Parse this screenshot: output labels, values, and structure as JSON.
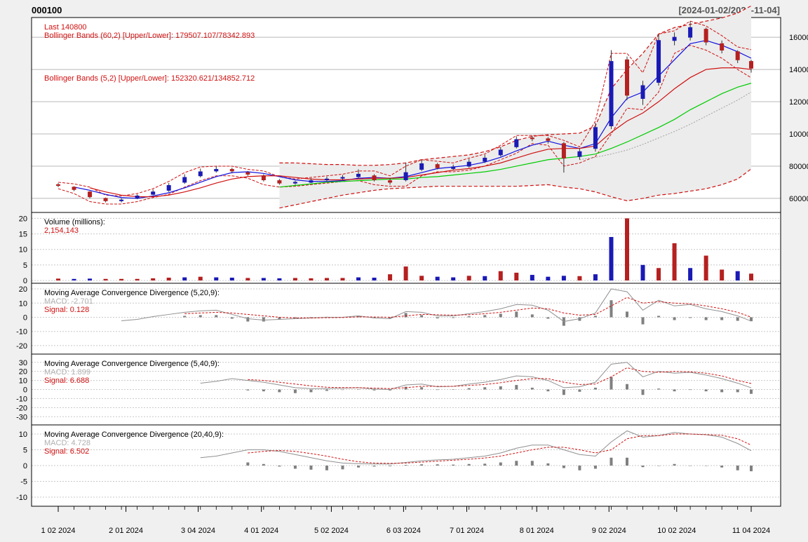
{
  "header": {
    "symbol": "000100",
    "date_range": "[2024-01-02/2024-11-04]"
  },
  "colors": {
    "up": "#1a1ab5",
    "down": "#b52020",
    "band60": "#d01010",
    "band5": "#d01010",
    "ma_blue": "#1010e0",
    "ma_red": "#d01010",
    "ma_green": "#00cc00",
    "ma_gray": "#a0a0a0",
    "macd_line": "#909090",
    "signal_line": "#d01010",
    "hist": "#808080"
  },
  "chart_data": [
    {
      "type": "candlestick",
      "name": "price",
      "annotations": [
        "Last 140800",
        "Bollinger Bands (60,2) [Upper/Lower]: 179507.107/78342.893",
        "Bollinger Bands (5,2) [Upper/Lower]: 152320.621/134852.712"
      ],
      "ylim": [
        53000,
        170500
      ],
      "yticks": [
        60000,
        80000,
        100000,
        120000,
        140000,
        160000
      ],
      "ytick_labels": [
        "60000",
        "80000",
        "100000",
        "120000",
        "140000",
        "160000"
      ],
      "grid": true,
      "x_dates": [
        "2024-01-02",
        "2024-01-09",
        "2024-01-16",
        "2024-01-23",
        "2024-01-30",
        "2024-02-06",
        "2024-02-13",
        "2024-02-20",
        "2024-02-27",
        "2024-03-05",
        "2024-03-12",
        "2024-03-19",
        "2024-03-26",
        "2024-04-02",
        "2024-04-09",
        "2024-04-16",
        "2024-04-23",
        "2024-04-30",
        "2024-05-07",
        "2024-05-14",
        "2024-05-21",
        "2024-05-28",
        "2024-06-04",
        "2024-06-11",
        "2024-06-18",
        "2024-06-25",
        "2024-07-02",
        "2024-07-09",
        "2024-07-16",
        "2024-07-23",
        "2024-07-30",
        "2024-08-06",
        "2024-08-13",
        "2024-08-20",
        "2024-08-27",
        "2024-09-03",
        "2024-09-10",
        "2024-09-17",
        "2024-09-24",
        "2024-10-01",
        "2024-10-08",
        "2024-10-15",
        "2024-10-22",
        "2024-10-29",
        "2024-11-04"
      ],
      "close": [
        68000,
        65500,
        61000,
        58500,
        59000,
        61500,
        64000,
        68000,
        73000,
        76500,
        78000,
        77000,
        75000,
        71500,
        69500,
        70000,
        71000,
        72000,
        73000,
        75000,
        71500,
        70000,
        76000,
        81500,
        79000,
        79500,
        82500,
        85000,
        90000,
        96500,
        97000,
        96000,
        85000,
        89000,
        104000,
        145000,
        124000,
        130000,
        158000,
        160000,
        166000,
        157000,
        152000,
        146000,
        140800
      ],
      "open": [
        68500,
        67000,
        64000,
        60000,
        58500,
        60000,
        62500,
        65000,
        70000,
        74000,
        77000,
        78000,
        76000,
        74000,
        71000,
        69500,
        70000,
        71500,
        72500,
        73500,
        74000,
        71000,
        71500,
        78000,
        81000,
        78500,
        80000,
        83000,
        87000,
        92000,
        97500,
        97000,
        94000,
        86000,
        91000,
        105000,
        146000,
        122000,
        132000,
        158000,
        160000,
        165000,
        156000,
        151000,
        145000
      ],
      "high": [
        69500,
        67500,
        64500,
        60500,
        60000,
        62500,
        65500,
        69500,
        75000,
        78500,
        80000,
        79000,
        77000,
        75000,
        72000,
        71000,
        72500,
        73500,
        74500,
        78000,
        75000,
        72500,
        82000,
        84000,
        82000,
        81000,
        84500,
        87000,
        92000,
        98500,
        99000,
        98000,
        95000,
        91000,
        107000,
        152000,
        148000,
        133000,
        162000,
        163000,
        170000,
        166000,
        158000,
        152000,
        146000
      ],
      "low": [
        67000,
        64500,
        60000,
        57500,
        57500,
        59500,
        62000,
        64000,
        69000,
        73000,
        76000,
        75500,
        74000,
        70500,
        68500,
        68500,
        69500,
        70500,
        71500,
        72500,
        70500,
        68500,
        70500,
        77000,
        78000,
        77500,
        79000,
        82000,
        86000,
        91000,
        95500,
        94000,
        76000,
        84000,
        89000,
        103000,
        121000,
        118000,
        130000,
        155000,
        158000,
        155000,
        150000,
        144000,
        138000
      ],
      "series": [
        {
          "name": "Bollinger Bands (60,2) Upper",
          "values": [
            null,
            null,
            null,
            null,
            null,
            null,
            null,
            null,
            null,
            null,
            null,
            null,
            null,
            null,
            82000,
            82000,
            81500,
            81000,
            81000,
            80500,
            80500,
            81000,
            82000,
            84000,
            85000,
            86000,
            87000,
            89000,
            92000,
            96000,
            98500,
            99500,
            100000,
            100500,
            105000,
            128000,
            140000,
            150000,
            162000,
            166000,
            168000,
            170000,
            172000,
            175000,
            179500
          ]
        },
        {
          "name": "Bollinger Bands (60,2) Lower",
          "values": [
            null,
            null,
            null,
            null,
            null,
            null,
            null,
            null,
            null,
            null,
            null,
            null,
            null,
            null,
            54000,
            56000,
            58000,
            60000,
            62000,
            63500,
            65000,
            66000,
            66500,
            67000,
            67500,
            67500,
            67500,
            67500,
            67500,
            67500,
            68000,
            68500,
            67000,
            66000,
            64000,
            61000,
            58500,
            60000,
            62000,
            63000,
            64500,
            66000,
            68500,
            72000,
            78300
          ]
        },
        {
          "name": "Bollinger Bands (5,2) Upper",
          "values": [
            70000,
            69000,
            67000,
            62000,
            61500,
            63000,
            66000,
            70500,
            76000,
            79500,
            80000,
            80000,
            78000,
            77000,
            73500,
            72000,
            73000,
            74000,
            75000,
            77000,
            77000,
            74000,
            80000,
            84000,
            83000,
            82000,
            85000,
            87500,
            93000,
            99000,
            99000,
            99000,
            96000,
            92000,
            108000,
            150000,
            150000,
            138000,
            162000,
            164000,
            170000,
            167000,
            161000,
            154000,
            152300
          ]
        },
        {
          "name": "Bollinger Bands (5,2) Lower",
          "values": [
            66000,
            63000,
            58000,
            56500,
            56500,
            58000,
            60500,
            62500,
            67000,
            71000,
            74000,
            74000,
            72500,
            68500,
            67000,
            67500,
            68500,
            69500,
            70500,
            71000,
            68500,
            67500,
            67500,
            74000,
            76500,
            76500,
            77500,
            80000,
            84000,
            88000,
            94000,
            93000,
            80000,
            82000,
            86000,
            100000,
            116000,
            115000,
            126000,
            150000,
            155000,
            152000,
            147000,
            140000,
            134850
          ]
        },
        {
          "name": "MA short (blue)",
          "values": [
            null,
            67000,
            65000,
            62500,
            60500,
            60000,
            61500,
            63500,
            66500,
            70000,
            73500,
            76000,
            76500,
            75500,
            73500,
            71500,
            70500,
            70500,
            71000,
            72500,
            73000,
            72500,
            73500,
            76000,
            78500,
            79500,
            80500,
            82500,
            85500,
            89500,
            93000,
            95500,
            93000,
            91000,
            94000,
            110000,
            122000,
            126000,
            136000,
            146000,
            156000,
            158000,
            155000,
            151000,
            147000
          ]
        },
        {
          "name": "MA medium (red)",
          "values": [
            null,
            null,
            66500,
            64000,
            62000,
            61000,
            61000,
            62000,
            64000,
            66500,
            69500,
            72000,
            73500,
            74000,
            74000,
            73000,
            72000,
            71500,
            71500,
            72000,
            72500,
            72500,
            73000,
            74500,
            76000,
            77500,
            78500,
            80000,
            82000,
            85000,
            88000,
            90500,
            91000,
            91000,
            92500,
            101000,
            108000,
            113000,
            120000,
            128000,
            135000,
            140000,
            141000,
            141000,
            140000
          ]
        },
        {
          "name": "MA long (green)",
          "values": [
            null,
            null,
            null,
            null,
            null,
            null,
            null,
            null,
            null,
            null,
            null,
            null,
            null,
            null,
            67000,
            68000,
            69000,
            70000,
            70500,
            71000,
            71500,
            72000,
            72000,
            73000,
            73500,
            74500,
            75500,
            76500,
            78000,
            80000,
            82000,
            84000,
            85000,
            86000,
            87500,
            91000,
            95000,
            99500,
            104000,
            109000,
            115000,
            120000,
            125000,
            129000,
            131500
          ]
        },
        {
          "name": "MA longer (gray)",
          "values": [
            null,
            null,
            null,
            null,
            null,
            null,
            null,
            null,
            null,
            null,
            null,
            null,
            null,
            null,
            null,
            null,
            null,
            null,
            null,
            null,
            null,
            null,
            null,
            null,
            null,
            null,
            null,
            null,
            null,
            null,
            null,
            null,
            null,
            84000,
            85500,
            87500,
            90000,
            93500,
            97500,
            101500,
            106000,
            111000,
            116000,
            121000,
            126000
          ]
        }
      ]
    },
    {
      "type": "bar",
      "name": "volume",
      "title": "Volume (millions):",
      "last_value": "2,154,143",
      "ylim": [
        0,
        21
      ],
      "yticks": [
        0,
        5,
        10,
        15,
        20
      ],
      "ytick_labels": [
        "0",
        "5",
        "10",
        "15",
        "20"
      ],
      "values": [
        0.6,
        0.5,
        0.6,
        0.5,
        0.5,
        0.5,
        0.7,
        0.9,
        1.0,
        1.2,
        1.0,
        0.9,
        0.8,
        0.8,
        0.7,
        0.8,
        0.7,
        0.8,
        0.8,
        1.0,
        0.9,
        2.0,
        4.5,
        1.5,
        1.2,
        1.0,
        1.5,
        1.4,
        3.0,
        2.5,
        1.8,
        1.2,
        1.5,
        1.4,
        2.0,
        14.0,
        20.0,
        5.0,
        4.0,
        12.0,
        4.0,
        8.0,
        3.5,
        3.0,
        2.2
      ],
      "up": [
        false,
        true,
        true,
        false,
        false,
        false,
        false,
        false,
        true,
        false,
        true,
        true,
        false,
        true,
        true,
        false,
        false,
        false,
        false,
        true,
        true,
        false,
        false,
        false,
        true,
        true,
        false,
        true,
        false,
        false,
        true,
        true,
        true,
        false,
        true,
        true,
        false,
        true,
        false,
        false,
        true,
        false,
        false,
        true,
        false
      ]
    },
    {
      "type": "line",
      "name": "macd_5_20_9",
      "title": "Moving Average Convergence Divergence (5,20,9):",
      "macd_label": "MACD: -2.701",
      "signal_label": "Signal: 0.128",
      "ylim": [
        -24,
        22
      ],
      "yticks": [
        -20,
        -10,
        0,
        10,
        20
      ],
      "ytick_labels": [
        "-20",
        "-10",
        "0",
        "10",
        "20"
      ],
      "macd": [
        null,
        null,
        null,
        null,
        -2.5,
        -1.5,
        0.5,
        2.0,
        3.5,
        4.5,
        5.0,
        2.0,
        -1.0,
        -2.0,
        -1.5,
        -1.0,
        -0.5,
        0.0,
        0.0,
        1.0,
        -0.5,
        -1.0,
        4.0,
        3.5,
        1.0,
        1.0,
        2.5,
        4.0,
        6.0,
        9.0,
        8.5,
        5.0,
        -3.0,
        -1.0,
        3.0,
        20.0,
        18.0,
        5.0,
        12.0,
        8.0,
        9.0,
        6.0,
        4.0,
        1.0,
        -2.7
      ],
      "signal": [
        null,
        null,
        null,
        null,
        null,
        null,
        null,
        null,
        2.5,
        3.0,
        3.5,
        3.0,
        2.0,
        1.0,
        0.0,
        -0.5,
        -0.5,
        -0.3,
        -0.2,
        0.3,
        0.2,
        0.0,
        1.0,
        2.0,
        1.8,
        1.5,
        1.8,
        2.5,
        3.5,
        5.0,
        6.5,
        6.0,
        3.0,
        1.5,
        2.0,
        8.0,
        14.0,
        10.0,
        11.0,
        10.0,
        9.5,
        8.0,
        6.0,
        3.5,
        0.1
      ]
    },
    {
      "type": "line",
      "name": "macd_5_40_9",
      "title": "Moving Average Convergence Divergence (5,40,9):",
      "macd_label": "MACD: 1.899",
      "signal_label": "Signal: 6.688",
      "ylim": [
        -36,
        36
      ],
      "yticks": [
        -30,
        -20,
        -10,
        0,
        10,
        20,
        30
      ],
      "ytick_labels": [
        "-30",
        "-20",
        "-10",
        "0",
        "10",
        "20",
        "30"
      ],
      "macd": [
        null,
        null,
        null,
        null,
        null,
        null,
        null,
        null,
        null,
        7.0,
        9.0,
        12.0,
        10.0,
        8.0,
        5.0,
        2.0,
        1.0,
        1.0,
        1.5,
        2.0,
        0.5,
        0.0,
        5.0,
        6.0,
        3.0,
        3.5,
        6.0,
        8.0,
        11.0,
        15.0,
        14.0,
        10.0,
        2.0,
        3.0,
        8.0,
        28.0,
        30.0,
        14.0,
        20.0,
        18.0,
        19.0,
        16.0,
        12.0,
        7.0,
        1.9
      ],
      "signal": [
        null,
        null,
        null,
        null,
        null,
        null,
        null,
        null,
        null,
        null,
        null,
        null,
        11.0,
        10.0,
        8.0,
        6.0,
        4.0,
        2.5,
        2.0,
        2.0,
        1.5,
        1.0,
        2.0,
        3.5,
        3.5,
        3.5,
        4.5,
        5.5,
        7.5,
        10.0,
        12.0,
        12.0,
        8.0,
        5.5,
        6.0,
        14.0,
        24.0,
        20.0,
        19.0,
        20.0,
        19.5,
        18.0,
        15.0,
        10.0,
        6.7
      ]
    },
    {
      "type": "line",
      "name": "macd_20_40_9",
      "title": "Moving Average Convergence Divergence (20,40,9):",
      "macd_label": "MACD: 4.728",
      "signal_label": "Signal: 6.502",
      "ylim": [
        -12,
        12
      ],
      "yticks": [
        -10,
        -5,
        0,
        5,
        10
      ],
      "ytick_labels": [
        "-10",
        "-5",
        "0",
        "5",
        "10"
      ],
      "macd": [
        null,
        null,
        null,
        null,
        null,
        null,
        null,
        null,
        null,
        2.5,
        3.0,
        4.0,
        5.0,
        5.0,
        4.5,
        3.5,
        2.5,
        1.5,
        0.8,
        0.6,
        0.5,
        0.5,
        1.0,
        1.5,
        1.8,
        2.0,
        2.5,
        3.0,
        4.0,
        5.5,
        6.5,
        6.5,
        5.0,
        3.5,
        3.0,
        7.5,
        11.0,
        9.0,
        9.5,
        10.5,
        10.0,
        9.8,
        9.0,
        7.0,
        4.7
      ],
      "signal": [
        null,
        null,
        null,
        null,
        null,
        null,
        null,
        null,
        null,
        null,
        null,
        null,
        4.0,
        4.5,
        4.8,
        4.5,
        3.8,
        3.0,
        2.0,
        1.2,
        0.8,
        0.7,
        0.8,
        1.1,
        1.4,
        1.7,
        2.0,
        2.4,
        3.0,
        4.0,
        5.0,
        5.8,
        5.8,
        5.0,
        4.0,
        5.0,
        8.5,
        9.5,
        9.5,
        10.0,
        10.0,
        9.8,
        9.6,
        8.5,
        6.5
      ]
    }
  ],
  "x_axis": {
    "labels": [
      "1 02 2024",
      "2 01 2024",
      "3 04 2024",
      "4 01 2024",
      "5 02 2024",
      "6 03 2024",
      "7 01 2024",
      "8 01 2024",
      "9 02 2024",
      "10 02 2024",
      "11 04 2024"
    ],
    "label_dates": [
      "2024-01-02",
      "2024-02-01",
      "2024-03-04",
      "2024-04-01",
      "2024-05-02",
      "2024-06-03",
      "2024-07-01",
      "2024-08-01",
      "2024-09-02",
      "2024-10-02",
      "2024-11-04"
    ]
  }
}
